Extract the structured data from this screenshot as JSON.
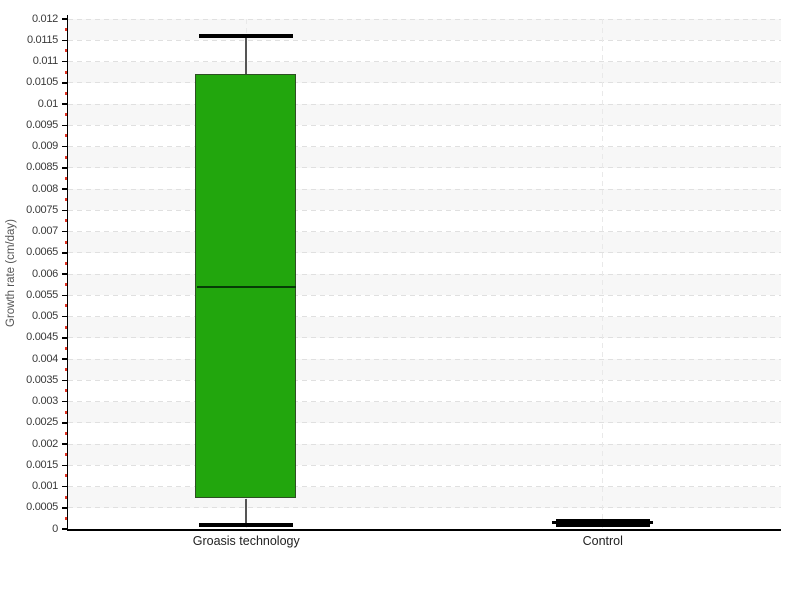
{
  "chart_data": {
    "type": "boxplot",
    "title": "",
    "xlabel": "",
    "ylabel": "Growth rate (cm/day)",
    "ylim": [
      0,
      0.012
    ],
    "ytick_step": 0.0005,
    "ytick_labels": [
      "0.012",
      "0.0115",
      "0.011",
      "0.0105",
      "0.01",
      "0.0095",
      "0.009",
      "0.0085",
      "0.008",
      "0.0075",
      "0.007",
      "0.0065",
      "0.006",
      "0.0055",
      "0.005",
      "0.0045",
      "0.004",
      "0.0035",
      "0.003",
      "0.0025",
      "0.002",
      "0.0015",
      "0.001",
      "0.0005",
      "0"
    ],
    "categories": [
      "Groasis technology",
      "Control"
    ],
    "series": [
      {
        "name": "Groasis technology",
        "min": 0.0001,
        "q1": 0.0007,
        "median": 0.0057,
        "q3": 0.0107,
        "max": 0.0116,
        "fill": "#22a60d",
        "stroke": "#2e4f24",
        "median_color": "#063c06",
        "whisker_color": "#555555",
        "cap_color": "#000000"
      },
      {
        "name": "Control",
        "min": 0.0001,
        "q1": 0.0001,
        "median": 0.00015,
        "q3": 0.0002,
        "max": 0.0002,
        "fill": "#000000",
        "stroke": "#000000",
        "median_color": "#000000",
        "whisker_color": "#000000",
        "cap_color": "#000000"
      }
    ],
    "grid": {
      "band_color": "#f7f7f7",
      "hline_color": "#e0e0e0",
      "vline_color": "#e9e9e9",
      "grid_on": true
    },
    "axis": {
      "line_color": "#000000",
      "major_tick_color": "#000000",
      "minor_tick_color": "#e03222",
      "tick_label_color": "#3a3a3a"
    },
    "legend": ""
  }
}
